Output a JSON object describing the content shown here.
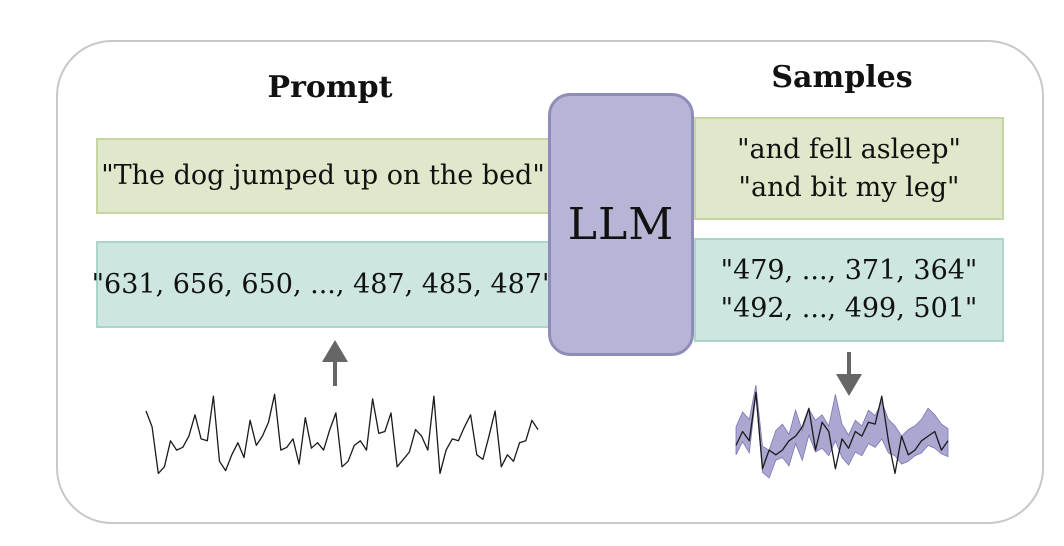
{
  "prompt": {
    "heading": "Prompt",
    "text_example": "\"The dog jumped up on the bed\"",
    "number_example": "\"631, 656, 650, ..., 487, 485, 487\""
  },
  "model": {
    "label": "LLM"
  },
  "samples": {
    "heading": "Samples",
    "text_samples": [
      "\"and fell asleep\"",
      "\"and bit my leg\""
    ],
    "number_samples": [
      "\"479, ..., 371, 364\"",
      "\"492, ..., 499, 501\""
    ]
  },
  "colors": {
    "text_box": "#e0e8cb",
    "number_box": "#cde6df",
    "llm": "#b7b5d6",
    "band": "#8d89c2",
    "arrow": "#666666"
  },
  "series": {
    "input": [
      0.72,
      0.55,
      0.05,
      0.12,
      0.4,
      0.3,
      0.33,
      0.45,
      0.68,
      0.42,
      0.4,
      0.88,
      0.18,
      0.08,
      0.25,
      0.38,
      0.22,
      0.62,
      0.35,
      0.45,
      0.6,
      0.9,
      0.3,
      0.33,
      0.42,
      0.15,
      0.65,
      0.32,
      0.38,
      0.3,
      0.52,
      0.7,
      0.12,
      0.18,
      0.35,
      0.4,
      0.3,
      0.85,
      0.48,
      0.5,
      0.7,
      0.12,
      0.2,
      0.28,
      0.52,
      0.45,
      0.3,
      0.88,
      0.05,
      0.3,
      0.42,
      0.4,
      0.55,
      0.68,
      0.25,
      0.2,
      0.45,
      0.72,
      0.12,
      0.25,
      0.18,
      0.38,
      0.4,
      0.62,
      0.52
    ],
    "sample_mean": [
      0.4,
      0.55,
      0.45,
      0.95,
      0.2,
      0.15,
      0.35,
      0.4,
      0.3,
      0.55,
      0.35,
      0.6,
      0.45,
      0.5,
      0.4,
      0.65,
      0.4,
      0.3,
      0.45,
      0.4,
      0.55,
      0.5,
      0.62,
      0.45,
      0.4,
      0.3,
      0.35,
      0.4,
      0.45,
      0.55,
      0.5,
      0.42,
      0.38
    ],
    "sample_spread": [
      0.15,
      0.16,
      0.18,
      0.06,
      0.14,
      0.15,
      0.16,
      0.18,
      0.17,
      0.18,
      0.16,
      0.14,
      0.17,
      0.18,
      0.16,
      0.25,
      0.18,
      0.16,
      0.17,
      0.16,
      0.18,
      0.17,
      0.2,
      0.18,
      0.16,
      0.15,
      0.17,
      0.16,
      0.18,
      0.2,
      0.18,
      0.16,
      0.15
    ],
    "sample_draw": [
      0.35,
      0.5,
      0.4,
      0.92,
      0.1,
      0.3,
      0.25,
      0.3,
      0.4,
      0.45,
      0.55,
      0.75,
      0.3,
      0.6,
      0.5,
      0.1,
      0.42,
      0.32,
      0.5,
      0.45,
      0.6,
      0.58,
      0.88,
      0.4,
      0.05,
      0.45,
      0.25,
      0.3,
      0.4,
      0.45,
      0.5,
      0.3,
      0.4
    ]
  }
}
